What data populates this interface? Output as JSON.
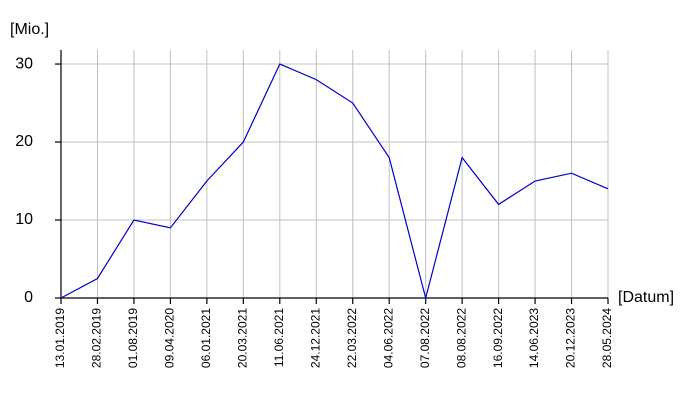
{
  "chart_data": {
    "type": "line",
    "y_label": "[Mio.]",
    "x_label": "[Datum]",
    "categories": [
      "13.01.2019",
      "28.02.2019",
      "01.08.2019",
      "09.04.2020",
      "06.01.2021",
      "20.03.2021",
      "11.06.2021",
      "24.12.2021",
      "22.03.2022",
      "04.06.2022",
      "07.08.2022",
      "08.08.2022",
      "16.09.2022",
      "14.06.2023",
      "20.12.2023",
      "28.05.2024"
    ],
    "values": [
      0,
      2.5,
      10,
      9,
      15,
      20,
      30,
      28,
      25,
      18,
      0,
      18,
      12,
      15,
      16,
      14
    ],
    "color": "#0000cc",
    "ylim": [
      0,
      31.8
    ],
    "yticks": [
      0,
      10,
      20,
      30
    ],
    "grid": true
  }
}
